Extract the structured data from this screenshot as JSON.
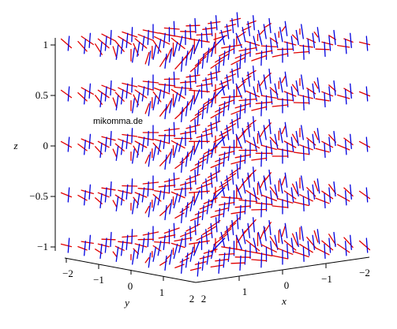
{
  "chart_data": {
    "type": "3d-vector-field",
    "title": "",
    "watermark": "mikomma.de",
    "axes": {
      "x": {
        "label": "x",
        "range": [
          -2,
          2
        ],
        "ticks": [
          "−2",
          "−1",
          "0",
          "1",
          "2"
        ]
      },
      "y": {
        "label": "y",
        "range": [
          -2,
          2
        ],
        "ticks": [
          "−2",
          "−1",
          "0",
          "1",
          "2"
        ]
      },
      "z": {
        "label": "z",
        "range": [
          -1,
          1
        ],
        "ticks": [
          "−1",
          "−0.5",
          "0",
          "0.5",
          "1"
        ]
      }
    },
    "z_levels": [
      -1,
      -0.5,
      0,
      0.5,
      1
    ],
    "grid_n": 9,
    "series": [
      {
        "name": "",
        "color": "#e00000",
        "field": "E"
      },
      {
        "name": "",
        "color": "#0000e0",
        "field": "B"
      }
    ]
  }
}
